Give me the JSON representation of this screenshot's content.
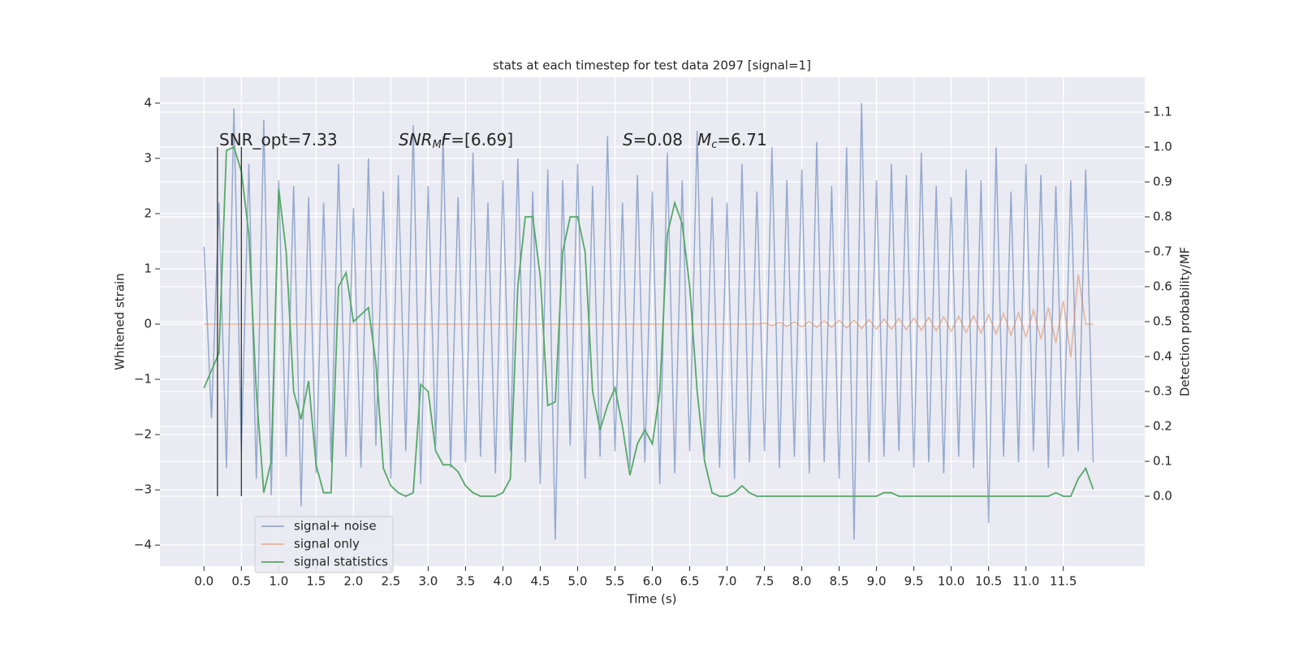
{
  "chart_data": {
    "type": "line",
    "title": "stats at each timestep for test data 2097 [signal=1]",
    "xlabel": "Time (s)",
    "ylabel": "Whitened strain",
    "y2label": "Detection probability/MF",
    "xlim": [
      -0.59,
      12.59
    ],
    "ylim": [
      -4.38,
      4.47
    ],
    "y2lim": [
      -0.2,
      1.2
    ],
    "xticks": [
      {
        "value": 0,
        "label": "0.0"
      },
      0.5,
      {
        "value": 1,
        "label": "1.0"
      },
      1.5,
      {
        "value": 2,
        "label": "2.0"
      },
      2.5,
      {
        "value": 3,
        "label": "3.0"
      },
      3.5,
      {
        "value": 4,
        "label": "4.0"
      },
      4.5,
      {
        "value": 5,
        "label": "5.0"
      },
      5.5,
      {
        "value": 6,
        "label": "6.0"
      },
      6.5,
      {
        "value": 7,
        "label": "7.0"
      },
      7.5,
      {
        "value": 8,
        "label": "8.0"
      },
      8.5,
      {
        "value": 9,
        "label": "9.0"
      },
      9.5,
      {
        "value": 10,
        "label": "10.0"
      },
      10.5,
      {
        "value": 11,
        "label": "11.0"
      },
      11.5
    ],
    "yticks": [
      {
        "value": -4,
        "label": "−4"
      },
      {
        "value": -3,
        "label": "−3"
      },
      {
        "value": -2,
        "label": "−2"
      },
      {
        "value": -1,
        "label": "−1"
      },
      0,
      1,
      2,
      3,
      4
    ],
    "y2ticks": [
      {
        "value": 0,
        "label": "0.0"
      },
      0.1,
      0.2,
      0.3,
      0.4,
      0.5,
      0.6,
      0.7,
      0.8,
      0.9,
      {
        "value": 1,
        "label": "1.0"
      },
      1.1
    ],
    "grid": true,
    "legend": "lower left",
    "x": [
      0,
      0.1,
      0.2,
      0.3,
      0.4,
      0.5,
      0.6,
      0.7,
      0.8,
      0.9,
      1,
      1.1,
      1.2,
      1.3,
      1.4,
      1.5,
      1.6,
      1.7,
      1.8,
      1.9,
      2,
      2.1,
      2.2,
      2.3,
      2.4,
      2.5,
      2.6,
      2.7,
      2.8,
      2.9,
      3,
      3.1,
      3.2,
      3.3,
      3.4,
      3.5,
      3.6,
      3.7,
      3.8,
      3.9,
      4,
      4.1,
      4.2,
      4.3,
      4.4,
      4.5,
      4.6,
      4.7,
      4.8,
      4.9,
      5,
      5.1,
      5.2,
      5.3,
      5.4,
      5.5,
      5.6,
      5.7,
      5.8,
      5.9,
      6,
      6.1,
      6.2,
      6.3,
      6.4,
      6.5,
      6.6,
      6.7,
      6.8,
      6.9,
      7,
      7.1,
      7.2,
      7.3,
      7.4,
      7.5,
      7.6,
      7.7,
      7.8,
      7.9,
      8,
      8.1,
      8.2,
      8.3,
      8.4,
      8.5,
      8.6,
      8.7,
      8.8,
      8.9,
      9,
      9.1,
      9.2,
      9.3,
      9.4,
      9.5,
      9.6,
      9.7,
      9.8,
      9.9,
      10,
      10.1,
      10.2,
      10.3,
      10.4,
      10.5,
      10.6,
      10.7,
      10.8,
      10.9,
      11,
      11.1,
      11.2,
      11.3,
      11.4,
      11.5,
      11.6,
      11.7,
      11.8,
      11.9
    ],
    "series": [
      {
        "name": "signal+ noise",
        "color": "#4c72b0",
        "values": [
          1.4,
          -1.7,
          2.2,
          -2.6,
          3.9,
          -2.3,
          2.9,
          -2.8,
          3.7,
          -3.1,
          2.6,
          -2.4,
          2.5,
          -3.3,
          2.3,
          -2.7,
          2.2,
          -2.5,
          2.9,
          -2.4,
          2.1,
          -2.6,
          3.0,
          -2.2,
          2.4,
          -2.8,
          2.7,
          -2.3,
          3.6,
          -2.9,
          2.5,
          -2.2,
          3.4,
          -2.6,
          2.3,
          -2.5,
          3.1,
          -2.4,
          2.2,
          -2.7,
          2.6,
          -2.3,
          3.0,
          -2.5,
          2.4,
          -2.9,
          2.8,
          -3.9,
          2.6,
          -2.2,
          2.9,
          -2.8,
          2.5,
          -2.4,
          3.4,
          -2.3,
          2.2,
          -2.6,
          2.7,
          -2.5,
          2.4,
          -2.9,
          3.1,
          -2.7,
          2.6,
          -2.3,
          3.5,
          -2.4,
          2.3,
          -2.6,
          2.2,
          -2.8,
          2.9,
          -2.5,
          2.4,
          -2.3,
          3.2,
          -2.6,
          2.6,
          -2.4,
          2.8,
          -2.7,
          3.3,
          -2.5,
          2.5,
          -2.8,
          3.2,
          -3.9,
          4.0,
          -2.5,
          2.6,
          -2.4,
          2.9,
          -2.3,
          2.7,
          -2.6,
          3.1,
          -2.5,
          2.5,
          -2.7,
          2.3,
          -2.4,
          2.8,
          -2.6,
          2.6,
          -3.6,
          3.2,
          -2.4,
          2.4,
          -2.5,
          2.9,
          -2.3,
          2.7,
          -2.6,
          2.5,
          -2.4,
          2.6,
          -2.3,
          2.8,
          -2.5
        ]
      },
      {
        "name": "signal only",
        "color": "#dd8452",
        "values": [
          0,
          0,
          0,
          0,
          0,
          0,
          0,
          0,
          0,
          0,
          0,
          0,
          0,
          0,
          0,
          0,
          0,
          0,
          0,
          0,
          0,
          0,
          0,
          0,
          0,
          0,
          0,
          0,
          0,
          0,
          0,
          0,
          0,
          0,
          0,
          0,
          0,
          0,
          0,
          0,
          0,
          0,
          0,
          0,
          0,
          0,
          0,
          0,
          0,
          0,
          0,
          0,
          0,
          0,
          0,
          0,
          0,
          0,
          0,
          0,
          0,
          0,
          0,
          0,
          0,
          0,
          0,
          0,
          0,
          0,
          0,
          0,
          0,
          0,
          0,
          0.02,
          -0.03,
          0.03,
          -0.04,
          0.04,
          -0.05,
          0.05,
          -0.06,
          0.06,
          -0.06,
          0.07,
          -0.07,
          0.07,
          -0.08,
          0.08,
          -0.09,
          0.09,
          -0.09,
          0.1,
          -0.1,
          0.11,
          -0.11,
          0.12,
          -0.12,
          0.13,
          -0.13,
          0.14,
          -0.15,
          0.15,
          -0.16,
          0.17,
          -0.18,
          0.19,
          -0.2,
          0.21,
          -0.23,
          0.25,
          -0.27,
          0.3,
          -0.34,
          0.42,
          -0.6,
          0.9,
          0,
          0
        ]
      },
      {
        "name": "signal statistics",
        "color": "#55a868",
        "axis": "y2",
        "values": [
          0.31,
          0.36,
          0.41,
          0.99,
          1.0,
          0.93,
          0.75,
          0.3,
          0.01,
          0.1,
          0.88,
          0.7,
          0.3,
          0.22,
          0.33,
          0.09,
          0.01,
          0.01,
          0.6,
          0.64,
          0.5,
          0.52,
          0.54,
          0.38,
          0.08,
          0.03,
          0.01,
          0,
          0.01,
          0.32,
          0.3,
          0.13,
          0.09,
          0.09,
          0.07,
          0.03,
          0.01,
          0,
          0,
          0,
          0.01,
          0.05,
          0.6,
          0.8,
          0.8,
          0.63,
          0.26,
          0.27,
          0.7,
          0.8,
          0.8,
          0.7,
          0.3,
          0.19,
          0.26,
          0.31,
          0.2,
          0.06,
          0.15,
          0.19,
          0.15,
          0.3,
          0.75,
          0.84,
          0.78,
          0.6,
          0.3,
          0.1,
          0.01,
          0,
          0,
          0.01,
          0.03,
          0.01,
          0,
          0,
          0,
          0,
          0,
          0,
          0,
          0,
          0,
          0,
          0,
          0,
          0,
          0,
          0,
          0,
          0,
          0.01,
          0.01,
          0,
          0,
          0,
          0,
          0,
          0,
          0,
          0,
          0,
          0,
          0,
          0,
          0,
          0,
          0,
          0,
          0,
          0,
          0,
          0,
          0,
          0.01,
          0,
          0,
          0.05,
          0.08,
          0.02
        ]
      }
    ],
    "vlines": {
      "x": [
        0.18,
        0.5
      ],
      "y2": [
        0,
        1
      ],
      "color": "#333333"
    },
    "annotations": [
      {
        "text": "SNR_opt=7.33"
      },
      {
        "math": "SNR",
        "sub": "M",
        "tail": "F",
        "text": "=[6.69]"
      },
      {
        "math": "S",
        "text": "=0.08"
      },
      {
        "math": "M",
        "sub": "c",
        "text": "=6.71"
      }
    ]
  }
}
